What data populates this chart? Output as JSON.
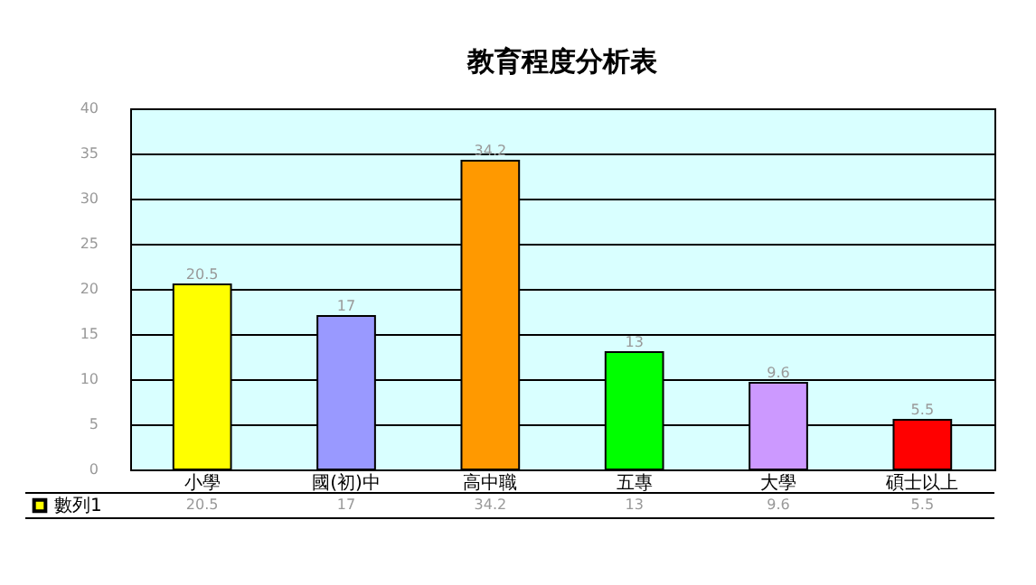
{
  "chart_data": {
    "type": "bar",
    "title": "教育程度分析表",
    "categories": [
      "小學",
      "國(初)中",
      "高中職",
      "五專",
      "大學",
      "碩士以上"
    ],
    "series": [
      {
        "name": "數列1",
        "values": [
          20.5,
          17,
          34.2,
          13,
          9.6,
          5.5
        ],
        "colors": [
          "#ffff00",
          "#9999ff",
          "#ff9900",
          "#00ff00",
          "#cc99ff",
          "#ff0000"
        ],
        "color": "#ffff00"
      }
    ],
    "ylim": [
      0,
      40
    ],
    "yticks": [
      0,
      5,
      10,
      15,
      20,
      25,
      30,
      35,
      40
    ],
    "annotations": [
      "20.5",
      "17",
      "34.2",
      "13",
      "9.6",
      "5.5"
    ],
    "grid": "y",
    "data_labels": true,
    "legend": "bottom left"
  }
}
